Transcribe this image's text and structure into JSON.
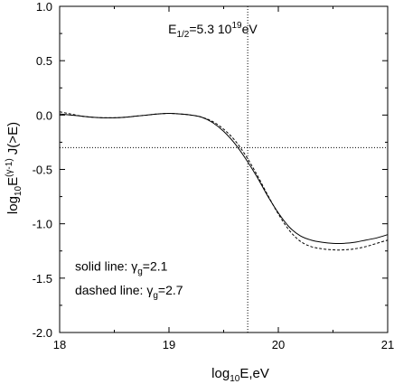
{
  "chart_data": {
    "type": "line",
    "xlabel": {
      "main": "log",
      "sub": "10",
      "rest": "E,eV"
    },
    "ylabel": {
      "p1": "log",
      "sub1": "10",
      "p2": "E",
      "sup": "(γ-1)",
      "p3": " J(>E)"
    },
    "xlim": [
      18,
      21
    ],
    "ylim": [
      -2.0,
      1.0
    ],
    "x_ticks": [
      18,
      19,
      20,
      21
    ],
    "x_tick_labels": [
      "18",
      "19",
      "20",
      "21"
    ],
    "y_ticks": [
      1.0,
      0.5,
      0.0,
      -0.5,
      -1.0,
      -1.5,
      -2.0
    ],
    "y_tick_labels": [
      "1.0",
      "0.5",
      "0.0",
      "-0.5",
      "-1.0",
      "-1.5",
      "-2.0"
    ],
    "grid": false,
    "series": [
      {
        "style": "solid",
        "x": [
          18.0,
          18.1,
          18.2,
          18.3,
          18.4,
          18.5,
          18.6,
          18.7,
          18.8,
          18.9,
          19.0,
          19.1,
          19.2,
          19.3,
          19.4,
          19.5,
          19.6,
          19.7,
          19.8,
          19.9,
          20.0,
          20.1,
          20.2,
          20.3,
          20.4,
          20.5,
          20.6,
          20.7,
          20.8,
          20.9,
          21.0
        ],
        "y": [
          0.01,
          0.0,
          -0.01,
          -0.02,
          -0.025,
          -0.025,
          -0.02,
          -0.01,
          0.0,
          0.01,
          0.015,
          0.01,
          0.0,
          -0.02,
          -0.07,
          -0.15,
          -0.26,
          -0.4,
          -0.56,
          -0.74,
          -0.9,
          -1.03,
          -1.11,
          -1.15,
          -1.17,
          -1.18,
          -1.18,
          -1.17,
          -1.15,
          -1.13,
          -1.1
        ]
      },
      {
        "style": "dashed",
        "x": [
          18.0,
          18.1,
          18.2,
          18.3,
          18.4,
          18.5,
          18.6,
          18.7,
          18.8,
          18.9,
          19.0,
          19.1,
          19.2,
          19.3,
          19.4,
          19.5,
          19.6,
          19.7,
          19.8,
          19.9,
          20.0,
          20.1,
          20.2,
          20.3,
          20.4,
          20.5,
          20.6,
          20.7,
          20.8,
          20.9,
          21.0
        ],
        "y": [
          0.03,
          0.01,
          -0.01,
          -0.02,
          -0.025,
          -0.025,
          -0.02,
          -0.01,
          0.0,
          0.01,
          0.015,
          0.01,
          0.0,
          -0.02,
          -0.06,
          -0.13,
          -0.23,
          -0.37,
          -0.54,
          -0.73,
          -0.91,
          -1.06,
          -1.16,
          -1.21,
          -1.23,
          -1.24,
          -1.24,
          -1.23,
          -1.21,
          -1.18,
          -1.15
        ]
      }
    ],
    "reference_lines": {
      "vertical_x": 19.72,
      "horizontal_y": -0.3
    },
    "annotations": {
      "e_half": {
        "pre": "E",
        "sub": "1/2",
        "mid": "=5.3 10",
        "sup": "19",
        "post": "eV",
        "x": 19.72,
        "y": 0.7
      },
      "solid_note": {
        "pre": "solid line:  ",
        "sym": "γ",
        "sub": "g",
        "post": "=2.1",
        "x": 18.14,
        "y": -1.43
      },
      "dashed_note": {
        "pre": "dashed line:  ",
        "sym": "γ",
        "sub": "g",
        "post": "=2.7",
        "x": 18.14,
        "y": -1.65
      }
    }
  }
}
